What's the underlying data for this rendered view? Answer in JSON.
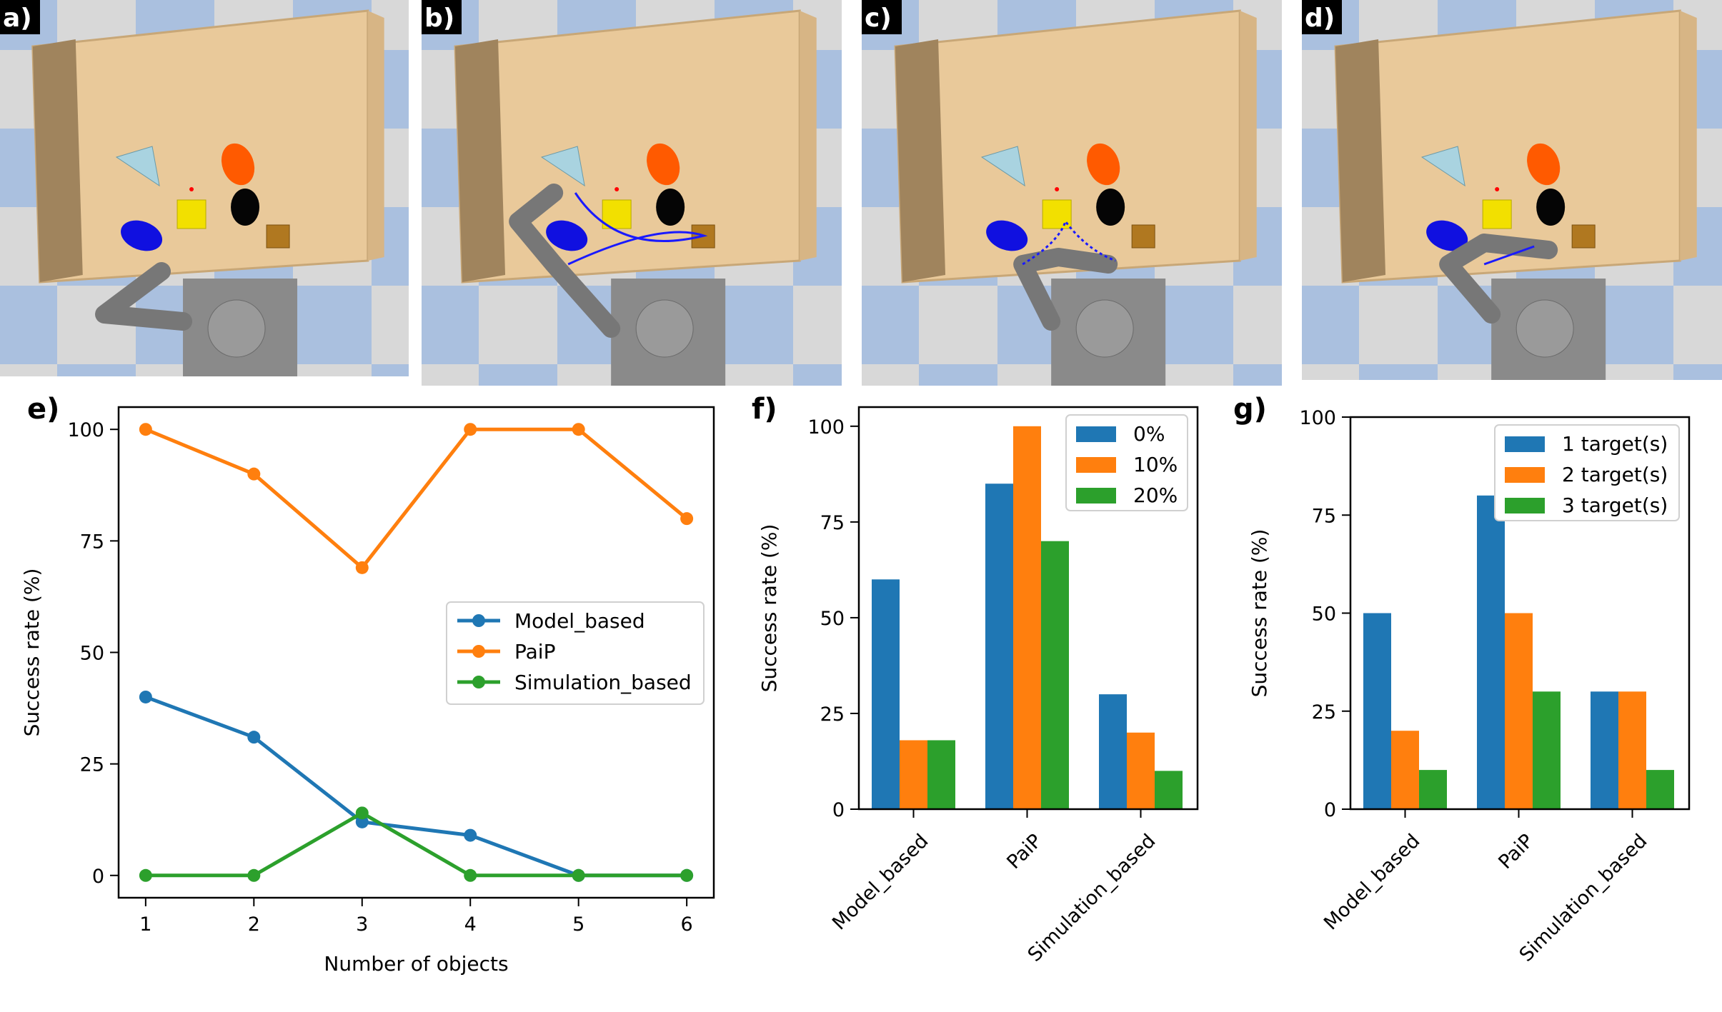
{
  "panels_top": [
    {
      "label": "a)",
      "trajectory": "none"
    },
    {
      "label": "b)",
      "trajectory": "solid"
    },
    {
      "label": "c)",
      "trajectory": "dotted"
    },
    {
      "label": "d)",
      "trajectory": "short"
    }
  ],
  "colors": {
    "blue": "#1f77b4",
    "orange": "#ff7f0e",
    "green": "#2ca02c",
    "table": "#e9c99a",
    "floor_blue": "#9db7dc",
    "floor_light": "#e6e6e6",
    "robot": "#8a8a8a"
  },
  "chart_data": [
    {
      "label": "e)",
      "type": "line",
      "xlabel": "Number of objects",
      "ylabel": "Success rate (%)",
      "x": [
        1,
        2,
        3,
        4,
        5,
        6
      ],
      "xlim": [
        0.75,
        6.25
      ],
      "ylim": [
        -5,
        105
      ],
      "yticks": [
        0,
        25,
        50,
        75,
        100
      ],
      "legend_position": "center-right",
      "series": [
        {
          "name": "Model_based",
          "color": "#1f77b4",
          "values": [
            40,
            31,
            12,
            9,
            0,
            0
          ]
        },
        {
          "name": "PaiP",
          "color": "#ff7f0e",
          "values": [
            100,
            90,
            69,
            100,
            100,
            80
          ]
        },
        {
          "name": "Simulation_based",
          "color": "#2ca02c",
          "values": [
            0,
            0,
            14,
            0,
            0,
            0
          ]
        }
      ]
    },
    {
      "label": "f)",
      "type": "bar",
      "xlabel": "",
      "ylabel": "Success rate (%)",
      "categories": [
        "Model_based",
        "PaiP",
        "Simulation_based"
      ],
      "ylim": [
        0,
        105
      ],
      "yticks": [
        0,
        25,
        50,
        75,
        100
      ],
      "legend_position": "top-right",
      "series": [
        {
          "name": "0%",
          "color": "#1f77b4",
          "values": [
            60,
            85,
            30
          ]
        },
        {
          "name": "10%",
          "color": "#ff7f0e",
          "values": [
            18,
            100,
            20
          ]
        },
        {
          "name": "20%",
          "color": "#2ca02c",
          "values": [
            18,
            70,
            10
          ]
        }
      ]
    },
    {
      "label": "g)",
      "type": "bar",
      "xlabel": "",
      "ylabel": "Success rate (%)",
      "categories": [
        "Model_based",
        "PaiP",
        "Simulation_based"
      ],
      "ylim": [
        0,
        100
      ],
      "yticks": [
        0,
        25,
        50,
        75,
        100
      ],
      "legend_position": "top-right",
      "series": [
        {
          "name": "1 target(s)",
          "color": "#1f77b4",
          "values": [
            50,
            80,
            30
          ]
        },
        {
          "name": "2 target(s)",
          "color": "#ff7f0e",
          "values": [
            20,
            50,
            30
          ]
        },
        {
          "name": "3 target(s)",
          "color": "#2ca02c",
          "values": [
            10,
            30,
            10
          ]
        }
      ]
    }
  ]
}
